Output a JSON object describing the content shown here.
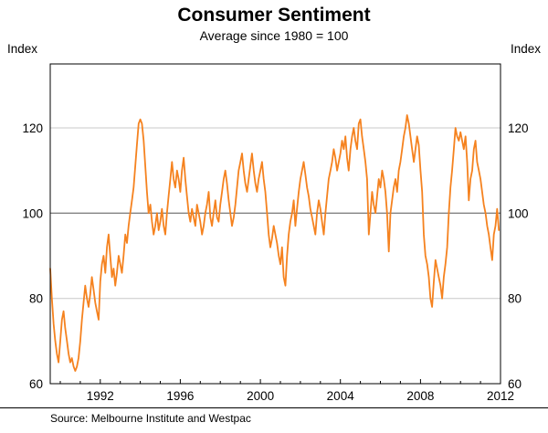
{
  "title": "Consumer Sentiment",
  "subtitle": "Average since 1980 = 100",
  "axis": {
    "left_label": "Index",
    "right_label": "Index"
  },
  "source": "Source: Melbourne Institute and Westpac",
  "chart_data": {
    "type": "line",
    "title": "Consumer Sentiment",
    "subtitle": "Average since 1980 = 100",
    "ylabel": "Index",
    "ylabel_right": "Index",
    "ylim": [
      60,
      135
    ],
    "yticks": [
      60,
      80,
      100,
      120
    ],
    "xlim": [
      1989.5,
      2012
    ],
    "xticks": [
      1992,
      1996,
      2000,
      2004,
      2008,
      2012
    ],
    "minor_xticks_every_year": true,
    "baseline": 100,
    "grid": "horizontal",
    "line_color": "#f5821f",
    "baseline_color": "#555555",
    "gridline_color": "#c9c9c9",
    "frequency": "monthly",
    "x_start": 1989.5,
    "x_step": 0.083333,
    "series": [
      {
        "name": "Consumer sentiment index (average since 1980 = 100)",
        "start": "1989-07",
        "end": "2011-12",
        "values": [
          87,
          80,
          74,
          70,
          67,
          65,
          70,
          75,
          77,
          73,
          70,
          67,
          65,
          66,
          64,
          63,
          64,
          66,
          70,
          75,
          79,
          83,
          80,
          78,
          81,
          85,
          82,
          79,
          77,
          75,
          84,
          88,
          90,
          86,
          92,
          95,
          90,
          85,
          87,
          83,
          86,
          90,
          88,
          86,
          90,
          95,
          93,
          97,
          100,
          103,
          106,
          111,
          116,
          121,
          122,
          121,
          117,
          111,
          105,
          100,
          102,
          98,
          95,
          97,
          100,
          96,
          98,
          101,
          97,
          95,
          100,
          104,
          108,
          112,
          108,
          106,
          110,
          108,
          105,
          110,
          113,
          108,
          104,
          100,
          98,
          101,
          99,
          97,
          102,
          100,
          98,
          95,
          97,
          100,
          102,
          105,
          99,
          97,
          100,
          103,
          99,
          98,
          102,
          105,
          108,
          110,
          107,
          103,
          100,
          97,
          99,
          102,
          106,
          110,
          112,
          114,
          110,
          107,
          105,
          108,
          111,
          114,
          110,
          107,
          105,
          108,
          110,
          112,
          108,
          105,
          100,
          95,
          92,
          94,
          97,
          95,
          93,
          90,
          88,
          92,
          85,
          83,
          90,
          95,
          98,
          100,
          103,
          97,
          101,
          105,
          108,
          110,
          112,
          109,
          106,
          104,
          101,
          99,
          97,
          95,
          100,
          103,
          101,
          98,
          95,
          100,
          104,
          108,
          110,
          112,
          115,
          113,
          110,
          112,
          114,
          117,
          115,
          118,
          113,
          110,
          115,
          118,
          120,
          117,
          115,
          121,
          122,
          118,
          115,
          112,
          108,
          95,
          100,
          105,
          102,
          100,
          104,
          108,
          106,
          110,
          108,
          105,
          100,
          91,
          100,
          103,
          106,
          108,
          105,
          110,
          112,
          115,
          118,
          120,
          123,
          121,
          118,
          115,
          112,
          115,
          118,
          116,
          110,
          105,
          95,
          90,
          88,
          85,
          80,
          78,
          84,
          89,
          87,
          85,
          83,
          80,
          85,
          88,
          92,
          100,
          106,
          110,
          115,
          120,
          118,
          117,
          119,
          117,
          115,
          118,
          112,
          103,
          108,
          110,
          115,
          117,
          112,
          110,
          108,
          105,
          102,
          100,
          97,
          95,
          92,
          89,
          95,
          97,
          101,
          96
        ]
      }
    ]
  }
}
